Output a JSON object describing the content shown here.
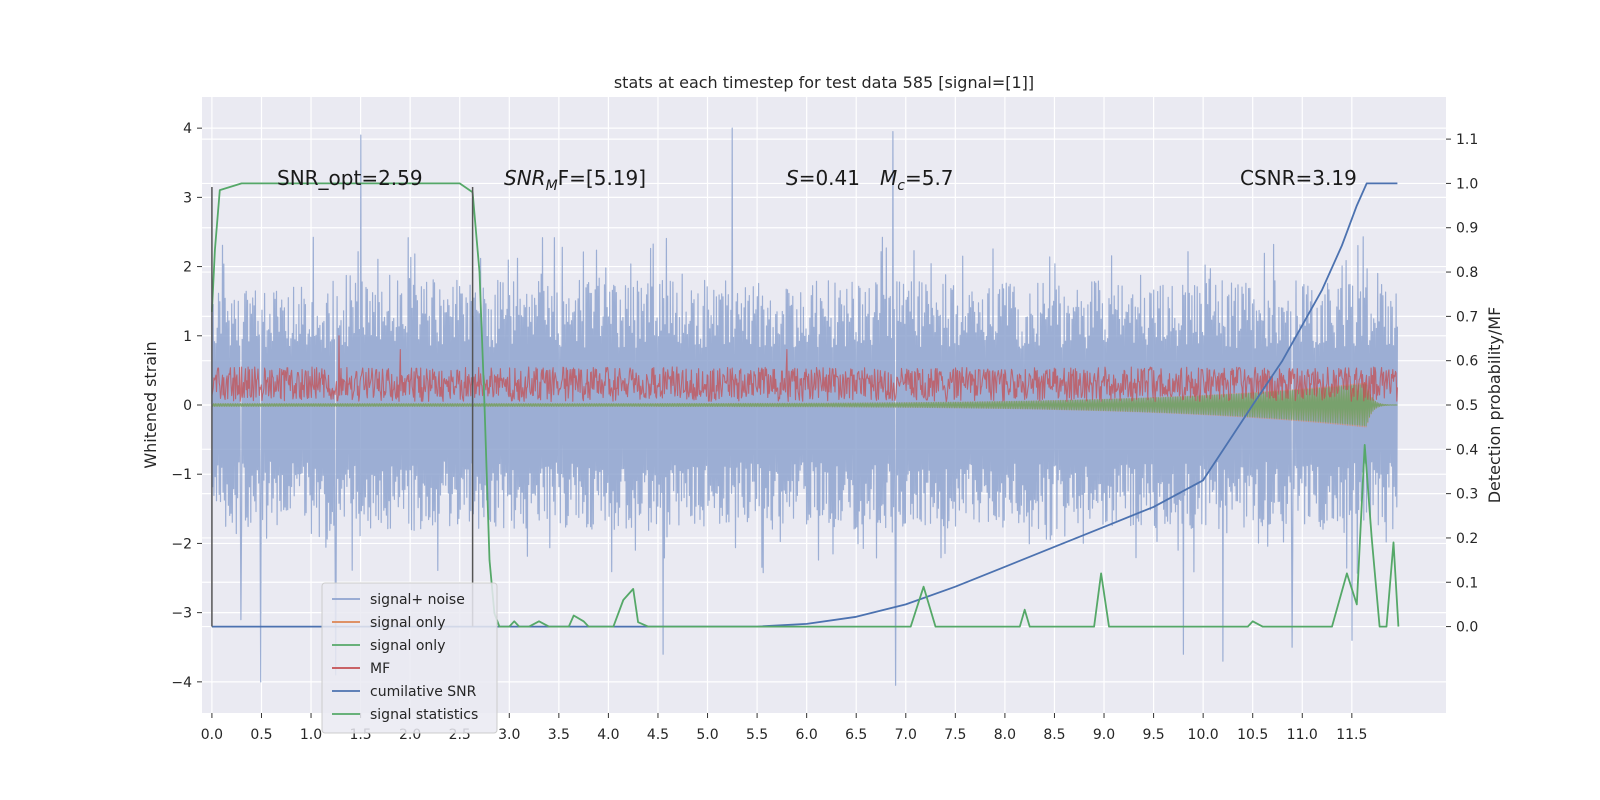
{
  "chart_data": {
    "type": "line",
    "title": "stats at each timestep for test data 585 [signal=[1]]",
    "xlabel": "",
    "ylabel_left": "Whitened strain",
    "ylabel_right": "Detection probability/MF",
    "xlim": [
      -0.1,
      12.45
    ],
    "ylim_left": [
      -4.45,
      4.45
    ],
    "ylim_right": [
      -0.195,
      1.195
    ],
    "x_ticks": [
      0.0,
      0.5,
      1.0,
      1.5,
      2.0,
      2.5,
      3.0,
      3.5,
      4.0,
      4.5,
      5.0,
      5.5,
      6.0,
      6.5,
      7.0,
      7.5,
      8.0,
      8.5,
      9.0,
      9.5,
      10.0,
      10.5,
      11.0,
      11.5
    ],
    "x_tick_labels": [
      "0.0",
      "0.5",
      "1.0",
      "1.5",
      "2.0",
      "2.5",
      "3.0",
      "3.5",
      "4.0",
      "4.5",
      "5.0",
      "5.5",
      "6.0",
      "6.5",
      "7.0",
      "7.5",
      "8.0",
      "8.5",
      "9.0",
      "9.5",
      "10.0",
      "10.5",
      "11.0",
      "11.5"
    ],
    "y_left_ticks": [
      -4,
      -3,
      -2,
      -1,
      0,
      1,
      2,
      3,
      4
    ],
    "y_left_tick_labels": [
      "−4",
      "−3",
      "−2",
      "−1",
      "0",
      "1",
      "2",
      "3",
      "4"
    ],
    "y_right_ticks": [
      0.0,
      0.1,
      0.2,
      0.3,
      0.4,
      0.5,
      0.6,
      0.7,
      0.8,
      0.9,
      1.0,
      1.1
    ],
    "y_right_tick_labels": [
      "0.0",
      "0.1",
      "0.2",
      "0.3",
      "0.4",
      "0.5",
      "0.6",
      "0.7",
      "0.8",
      "0.9",
      "1.0",
      "1.1"
    ],
    "grid": true,
    "legend_position": "lower-left",
    "annotations": {
      "snr_opt": "SNR_opt=2.59",
      "snr_mf_main": "SNR",
      "snr_mf_sub": "M",
      "snr_mf_rest": "F=[5.19]",
      "s_main": "S",
      "s_rest": "=0.41",
      "mc_main": "M",
      "mc_sub": "c",
      "mc_rest": "=5.7",
      "csnr": "CSNR=3.19"
    },
    "series": [
      {
        "name": "signal+ noise",
        "axis": "left",
        "color": "#8ea3cf",
        "kind": "noise-band",
        "x_range": [
          0.0,
          11.96
        ],
        "band_mean": 0.0,
        "band_typical": 1.8,
        "peaks": [
          {
            "x": 0.29,
            "y": 4.0
          },
          {
            "x": 0.29,
            "y": -3.1
          },
          {
            "x": 0.49,
            "y": -4.0
          },
          {
            "x": 1.5,
            "y": 3.9
          },
          {
            "x": 1.25,
            "y": -3.9
          },
          {
            "x": 5.25,
            "y": 4.0
          },
          {
            "x": 4.55,
            "y": -3.6
          },
          {
            "x": 6.87,
            "y": 3.95
          },
          {
            "x": 6.9,
            "y": -4.05
          },
          {
            "x": 9.8,
            "y": -3.6
          },
          {
            "x": 10.2,
            "y": -3.7
          },
          {
            "x": 10.9,
            "y": -3.5
          },
          {
            "x": 11.5,
            "y": -3.4
          }
        ]
      },
      {
        "name": "signal only",
        "axis": "left",
        "color": "#dd8452",
        "kind": "chirp",
        "x_range": [
          0.0,
          11.96
        ],
        "amplitude_start": 0.02,
        "amplitude_end": 0.32,
        "merger_time": 11.65
      },
      {
        "name": "signal only",
        "axis": "left",
        "color": "#55a868",
        "kind": "chirp",
        "x_range": [
          0.0,
          11.96
        ],
        "amplitude_start": 0.02,
        "amplitude_end": 0.3,
        "merger_time": 11.65
      },
      {
        "name": "MF",
        "axis": "left",
        "color": "#c44e52",
        "kind": "noise-band-positive",
        "x_range": [
          0.0,
          11.96
        ],
        "band_low": 0.05,
        "band_high": 0.55,
        "peaks": [
          {
            "x": 1.28,
            "y": 1.0
          },
          {
            "x": 1.9,
            "y": 0.8
          },
          {
            "x": 5.8,
            "y": 0.8
          }
        ]
      },
      {
        "name": "cumilative SNR",
        "axis": "right",
        "color": "#4c72b0",
        "kind": "curve",
        "points": [
          [
            0.0,
            0.0
          ],
          [
            5.5,
            0.0
          ],
          [
            6.0,
            0.006
          ],
          [
            6.5,
            0.022
          ],
          [
            7.0,
            0.05
          ],
          [
            7.5,
            0.09
          ],
          [
            8.0,
            0.135
          ],
          [
            8.5,
            0.18
          ],
          [
            9.0,
            0.225
          ],
          [
            9.5,
            0.27
          ],
          [
            10.0,
            0.33
          ],
          [
            10.5,
            0.5
          ],
          [
            10.8,
            0.6
          ],
          [
            11.0,
            0.68
          ],
          [
            11.2,
            0.76
          ],
          [
            11.4,
            0.86
          ],
          [
            11.55,
            0.95
          ],
          [
            11.65,
            1.0
          ],
          [
            11.96,
            1.0
          ]
        ]
      },
      {
        "name": "signal statistics",
        "axis": "right",
        "color": "#55a868",
        "kind": "curve",
        "points": [
          [
            0.0,
            0.71
          ],
          [
            0.03,
            0.85
          ],
          [
            0.08,
            0.985
          ],
          [
            0.3,
            1.0
          ],
          [
            2.5,
            1.0
          ],
          [
            2.63,
            0.98
          ],
          [
            2.7,
            0.8
          ],
          [
            2.75,
            0.5
          ],
          [
            2.8,
            0.15
          ],
          [
            2.85,
            0.03
          ],
          [
            2.9,
            0.0
          ],
          [
            3.0,
            0.0
          ],
          [
            3.05,
            0.012
          ],
          [
            3.1,
            0.0
          ],
          [
            3.2,
            0.0
          ],
          [
            3.3,
            0.012
          ],
          [
            3.4,
            0.0
          ],
          [
            3.6,
            0.0
          ],
          [
            3.65,
            0.025
          ],
          [
            3.75,
            0.012
          ],
          [
            3.8,
            0.0
          ],
          [
            4.05,
            0.0
          ],
          [
            4.15,
            0.06
          ],
          [
            4.25,
            0.085
          ],
          [
            4.3,
            0.01
          ],
          [
            4.4,
            0.0
          ],
          [
            7.05,
            0.0
          ],
          [
            7.18,
            0.09
          ],
          [
            7.3,
            0.0
          ],
          [
            8.15,
            0.0
          ],
          [
            8.2,
            0.038
          ],
          [
            8.25,
            0.0
          ],
          [
            8.9,
            0.0
          ],
          [
            8.97,
            0.12
          ],
          [
            9.05,
            0.0
          ],
          [
            10.45,
            0.0
          ],
          [
            10.5,
            0.012
          ],
          [
            10.6,
            0.0
          ],
          [
            11.3,
            0.0
          ],
          [
            11.45,
            0.12
          ],
          [
            11.55,
            0.05
          ],
          [
            11.63,
            0.41
          ],
          [
            11.7,
            0.2
          ],
          [
            11.78,
            0.0
          ],
          [
            11.85,
            0.0
          ],
          [
            11.92,
            0.19
          ],
          [
            11.97,
            0.0
          ]
        ]
      }
    ],
    "vlines": [
      {
        "x": 0.0,
        "y_from": -3.2,
        "y_to": 3.15,
        "color": "#555555"
      },
      {
        "x": 2.63,
        "y_from": -3.2,
        "y_to": 3.15,
        "color": "#555555"
      }
    ]
  }
}
